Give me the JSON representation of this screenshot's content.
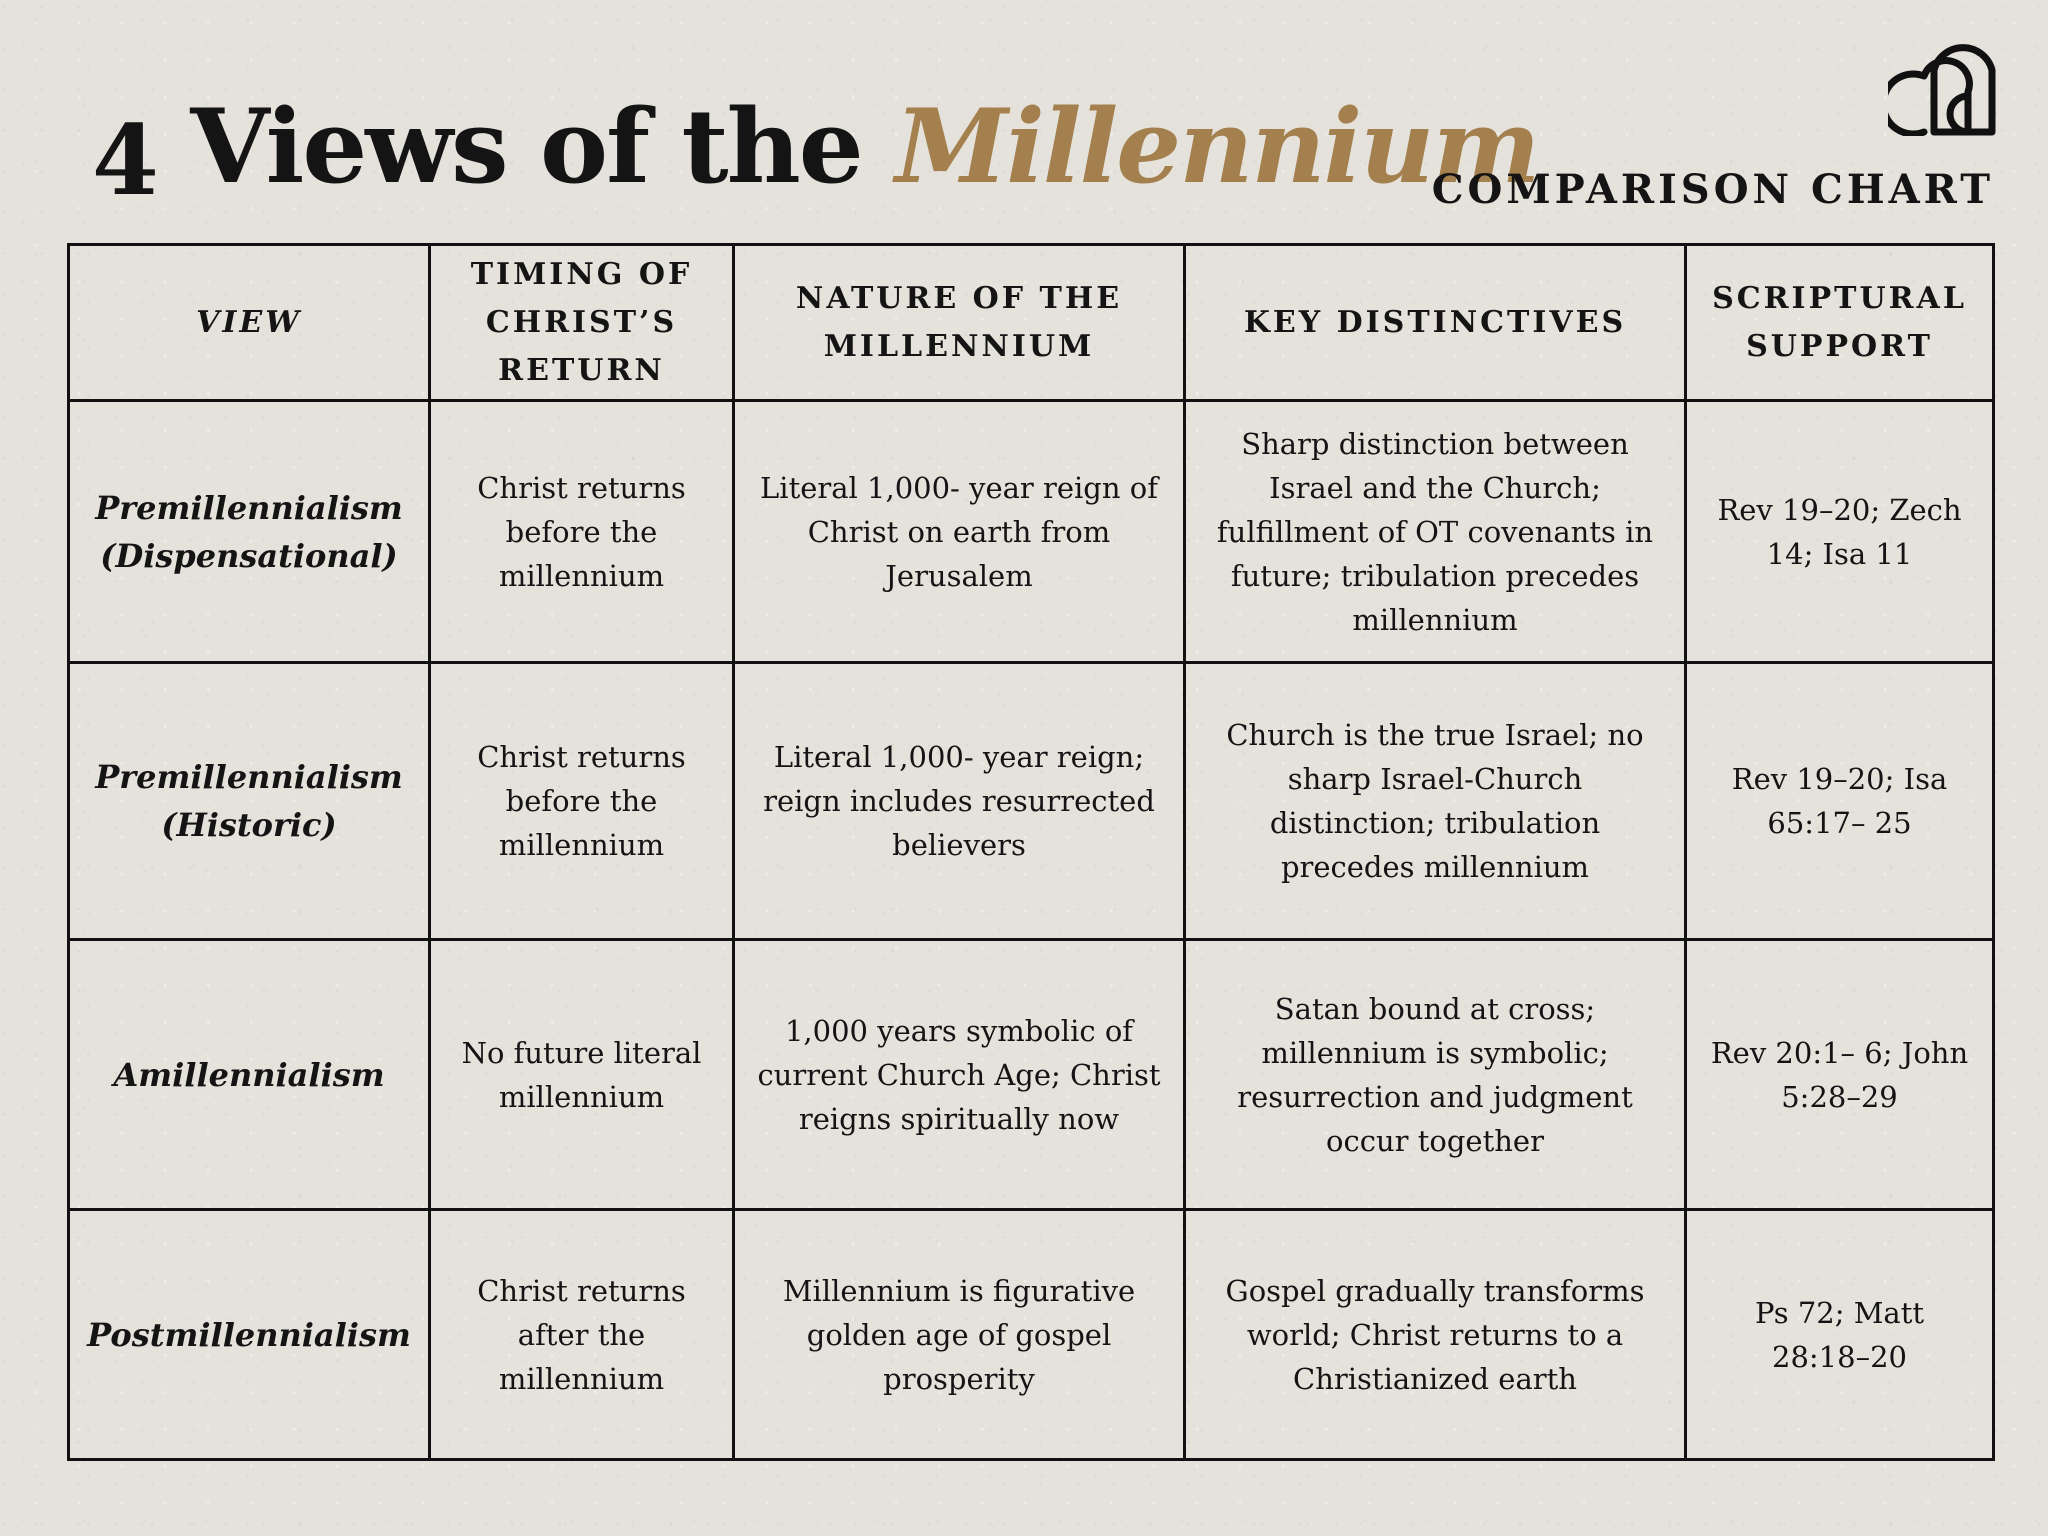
{
  "header": {
    "title_number": "4",
    "title_plain": "Views of the",
    "title_accent": "Millennium",
    "subtitle": "COMPARISON CHART",
    "logo_icon": "arch-monogram-icon",
    "accent_color": "#a4804e"
  },
  "table": {
    "columns": [
      "VIEW",
      "TIMING OF CHRIST’S RETURN",
      "NATURE OF THE MILLENNIUM",
      "KEY DISTINCTIVES",
      "SCRIPTURAL SUPPORT"
    ],
    "rows": [
      {
        "view_line1": "Premillennialism",
        "view_line2": "(Dispensational)",
        "timing": "Christ returns before the millennium",
        "nature": "Literal 1,000- year reign of Christ on earth from Jerusalem",
        "distinctives": "Sharp distinction between Israel and the Church; fulfillment of OT covenants in future; tribulation precedes millennium",
        "support": "Rev 19–20; Zech 14; Isa 11"
      },
      {
        "view_line1": "Premillennialism",
        "view_line2": "(Historic)",
        "timing": "Christ returns before the millennium",
        "nature": "Literal 1,000- year reign; reign includes resurrected believers",
        "distinctives": "Church is the true Israel; no sharp Israel-Church distinction; tribulation precedes millennium",
        "support": "Rev 19–20; Isa 65:17– 25"
      },
      {
        "view_line1": "Amillennialism",
        "view_line2": "",
        "timing": "No future literal millennium",
        "nature": "1,000 years symbolic of current Church Age; Christ reigns spiritually now",
        "distinctives": "Satan bound at cross; millennium is symbolic; resurrection and judgment occur together",
        "support": "Rev 20:1– 6; John 5:28–29"
      },
      {
        "view_line1": "Postmillennialism",
        "view_line2": "",
        "timing": "Christ returns after the millennium",
        "nature": "Millennium is figurative golden age of gospel prosperity",
        "distinctives": "Gospel gradually transforms world; Christ returns to a Christianized earth",
        "support": "Ps 72; Matt 28:18–20"
      }
    ]
  }
}
